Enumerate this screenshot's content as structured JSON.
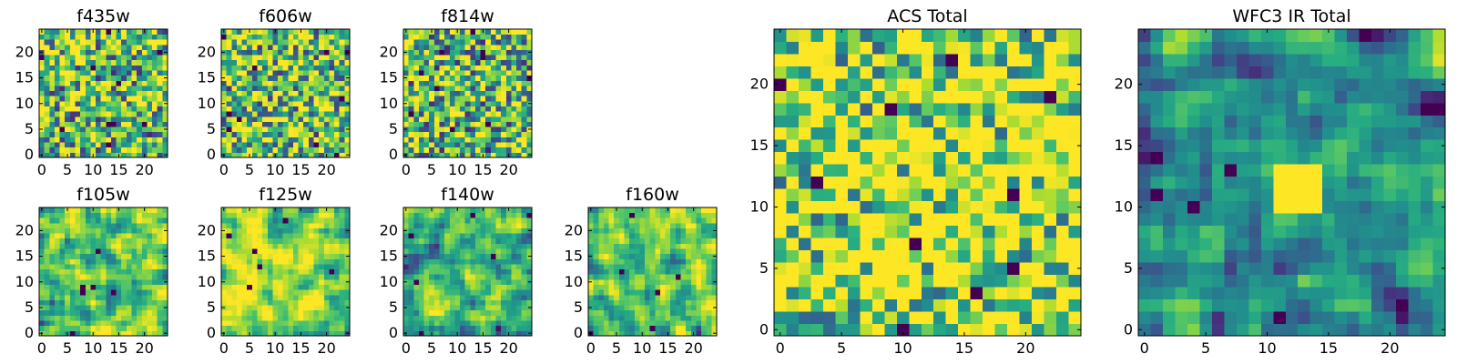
{
  "chart_data": [
    {
      "type": "heatmap",
      "title": "f435w",
      "grid_size": 25,
      "colormap": "viridis",
      "xticks": [
        0,
        5,
        10,
        15,
        20
      ],
      "yticks": [
        0,
        5,
        10,
        15,
        20
      ],
      "xlim": [
        -0.5,
        24.5
      ],
      "ylim": [
        -0.5,
        24.5
      ],
      "seed": 11,
      "smooth": 0,
      "bias": 0.12
    },
    {
      "type": "heatmap",
      "title": "f606w",
      "grid_size": 25,
      "colormap": "viridis",
      "xticks": [
        0,
        5,
        10,
        15,
        20
      ],
      "yticks": [
        0,
        5,
        10,
        15,
        20
      ],
      "xlim": [
        -0.5,
        24.5
      ],
      "ylim": [
        -0.5,
        24.5
      ],
      "seed": 23,
      "smooth": 0,
      "bias": 0.15
    },
    {
      "type": "heatmap",
      "title": "f814w",
      "grid_size": 25,
      "colormap": "viridis",
      "xticks": [
        0,
        5,
        10,
        15,
        20
      ],
      "yticks": [
        0,
        5,
        10,
        15,
        20
      ],
      "xlim": [
        -0.5,
        24.5
      ],
      "ylim": [
        -0.5,
        24.5
      ],
      "seed": 37,
      "smooth": 0,
      "bias": 0.1
    },
    {
      "type": "heatmap",
      "title": "f105w",
      "grid_size": 25,
      "colormap": "viridis",
      "xticks": [
        0,
        5,
        10,
        15,
        20
      ],
      "yticks": [
        0,
        5,
        10,
        15,
        20
      ],
      "xlim": [
        -0.5,
        24.5
      ],
      "ylim": [
        -0.5,
        24.5
      ],
      "seed": 41,
      "smooth": 1,
      "bias": 0.2
    },
    {
      "type": "heatmap",
      "title": "f125w",
      "grid_size": 25,
      "colormap": "viridis",
      "xticks": [
        0,
        5,
        10,
        15,
        20
      ],
      "yticks": [
        0,
        5,
        10,
        15,
        20
      ],
      "xlim": [
        -0.5,
        24.5
      ],
      "ylim": [
        -0.5,
        24.5
      ],
      "seed": 53,
      "smooth": 1,
      "bias": 0.22
    },
    {
      "type": "heatmap",
      "title": "f140w",
      "grid_size": 25,
      "colormap": "viridis",
      "xticks": [
        0,
        5,
        10,
        15,
        20
      ],
      "yticks": [
        0,
        5,
        10,
        15,
        20
      ],
      "xlim": [
        -0.5,
        24.5
      ],
      "ylim": [
        -0.5,
        24.5
      ],
      "seed": 67,
      "smooth": 1,
      "bias": 0.05
    },
    {
      "type": "heatmap",
      "title": "f160w",
      "grid_size": 25,
      "colormap": "viridis",
      "xticks": [
        0,
        5,
        10,
        15,
        20
      ],
      "yticks": [
        0,
        5,
        10,
        15,
        20
      ],
      "xlim": [
        -0.5,
        24.5
      ],
      "ylim": [
        -0.5,
        24.5
      ],
      "seed": 79,
      "smooth": 1,
      "bias": 0.12
    },
    {
      "type": "heatmap",
      "title": "ACS Total",
      "grid_size": 25,
      "colormap": "viridis",
      "xticks": [
        0,
        5,
        10,
        15,
        20
      ],
      "yticks": [
        0,
        5,
        10,
        15,
        20
      ],
      "xlim": [
        -0.5,
        24.5
      ],
      "ylim": [
        -0.5,
        24.5
      ],
      "seed": 97,
      "smooth": 0,
      "bias": 0.3
    },
    {
      "type": "heatmap",
      "title": "WFC3 IR Total",
      "grid_size": 25,
      "colormap": "viridis",
      "xticks": [
        0,
        5,
        10,
        15,
        20
      ],
      "yticks": [
        0,
        5,
        10,
        15,
        20
      ],
      "xlim": [
        -0.5,
        24.5
      ],
      "ylim": [
        -0.5,
        24.5
      ],
      "seed": 113,
      "smooth": 1,
      "bias": -0.05,
      "bright_spot": [
        12,
        12
      ]
    }
  ]
}
